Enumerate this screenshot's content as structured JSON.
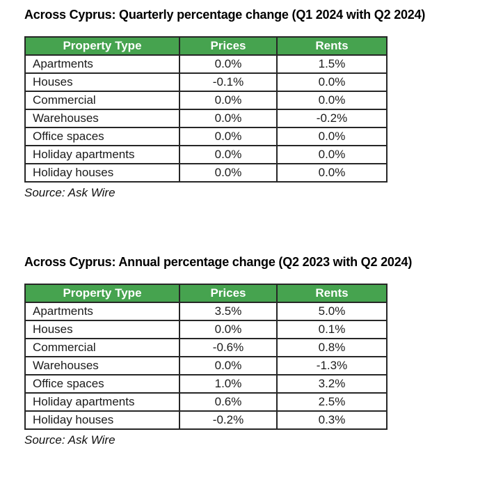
{
  "colors": {
    "header_bg": "#46a34f",
    "header_text": "#ffffff",
    "border": "#262626",
    "text": "#1b1b1b",
    "page_bg": "#ffffff"
  },
  "tables": [
    {
      "title": "Across Cyprus: Quarterly percentage change (Q1 2024 with Q2 2024)",
      "columns": [
        "Property Type",
        "Prices",
        "Rents"
      ],
      "rows": [
        [
          "Apartments",
          "0.0%",
          "1.5%"
        ],
        [
          "Houses",
          "-0.1%",
          "0.0%"
        ],
        [
          "Commercial",
          "0.0%",
          "0.0%"
        ],
        [
          "Warehouses",
          "0.0%",
          "-0.2%"
        ],
        [
          "Office spaces",
          "0.0%",
          "0.0%"
        ],
        [
          "Holiday apartments",
          "0.0%",
          "0.0%"
        ],
        [
          "Holiday houses",
          "0.0%",
          "0.0%"
        ]
      ],
      "source": "Source: Ask Wire"
    },
    {
      "title": "Across Cyprus: Annual percentage change (Q2 2023 with Q2 2024)",
      "columns": [
        "Property Type",
        "Prices",
        "Rents"
      ],
      "rows": [
        [
          "Apartments",
          "3.5%",
          "5.0%"
        ],
        [
          "Houses",
          "0.0%",
          "0.1%"
        ],
        [
          "Commercial",
          "-0.6%",
          "0.8%"
        ],
        [
          "Warehouses",
          "0.0%",
          "-1.3%"
        ],
        [
          "Office spaces",
          "1.0%",
          "3.2%"
        ],
        [
          "Holiday apartments",
          "0.6%",
          "2.5%"
        ],
        [
          "Holiday houses",
          "-0.2%",
          "0.3%"
        ]
      ],
      "source": "Source: Ask Wire"
    }
  ]
}
